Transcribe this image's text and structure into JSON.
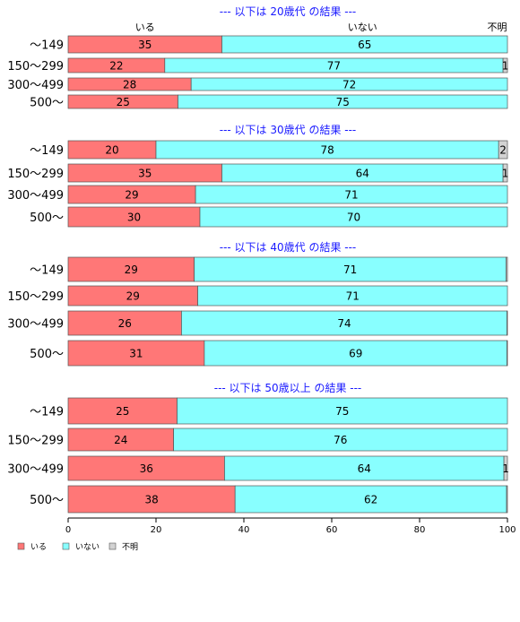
{
  "chart_data": {
    "type": "bar",
    "orientation": "horizontal",
    "stacked": true,
    "percent": true,
    "xlim": [
      0,
      100
    ],
    "xticks": [
      "0",
      "20",
      "40",
      "60",
      "80",
      "100"
    ],
    "header_labels": [
      "いる",
      "いない",
      "不明"
    ],
    "legend": [
      "いる",
      "いない",
      "不明"
    ],
    "colors": [
      "#ff7777",
      "#88ffff",
      "#d3d3d3"
    ],
    "panels": [
      {
        "title": "--- 以下は 20歳代 の結果 ---",
        "categories": [
          "～149",
          "150～299",
          "300～499",
          "500～"
        ],
        "values": [
          [
            35,
            65,
            0
          ],
          [
            22,
            77,
            1
          ],
          [
            28,
            72,
            0
          ],
          [
            25,
            75,
            0
          ]
        ],
        "labels": [
          [
            "35",
            "65",
            ""
          ],
          [
            "22",
            "77",
            "1"
          ],
          [
            "28",
            "72",
            ""
          ],
          [
            "25",
            "75",
            ""
          ]
        ]
      },
      {
        "title": "--- 以下は 30歳代 の結果 ---",
        "categories": [
          "～149",
          "150～299",
          "300～499",
          "500～"
        ],
        "values": [
          [
            20,
            78,
            2
          ],
          [
            35,
            64,
            1
          ],
          [
            29,
            71,
            0
          ],
          [
            30,
            70,
            0
          ]
        ],
        "labels": [
          [
            "20",
            "78",
            "2"
          ],
          [
            "35",
            "64",
            "1"
          ],
          [
            "29",
            "71",
            ""
          ],
          [
            "30",
            "70",
            ""
          ]
        ]
      },
      {
        "title": "--- 以下は 40歳代 の結果 ---",
        "categories": [
          "～149",
          "150～299",
          "300～499",
          "500～"
        ],
        "values": [
          [
            28.7,
            71,
            0.3
          ],
          [
            29.5,
            70.5,
            0
          ],
          [
            25.8,
            74.1,
            0.1
          ],
          [
            31,
            68.9,
            0.1
          ]
        ],
        "labels": [
          [
            "29",
            "71",
            ""
          ],
          [
            "29",
            "71",
            ""
          ],
          [
            "26",
            "74",
            ""
          ],
          [
            "31",
            "69",
            ""
          ]
        ]
      },
      {
        "title": "--- 以下は 50歳以上 の結果 ---",
        "categories": [
          "～149",
          "150～299",
          "300～499",
          "500～"
        ],
        "values": [
          [
            24.8,
            75.2,
            0
          ],
          [
            24,
            76,
            0
          ],
          [
            35.6,
            63.6,
            0.8
          ],
          [
            38,
            61.8,
            0.2
          ]
        ],
        "labels": [
          [
            "25",
            "75",
            ""
          ],
          [
            "24",
            "76",
            ""
          ],
          [
            "36",
            "64",
            "1"
          ],
          [
            "38",
            "62",
            ""
          ]
        ]
      }
    ]
  }
}
